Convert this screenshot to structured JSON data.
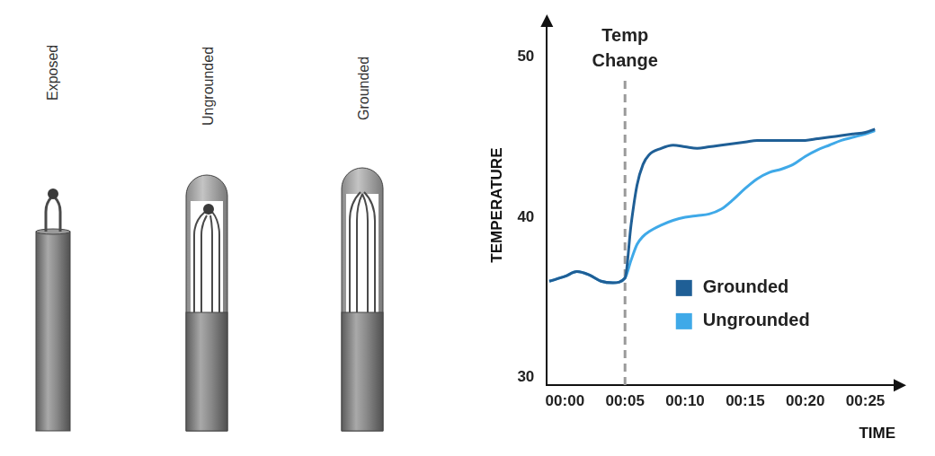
{
  "probes": {
    "labels": [
      "Exposed",
      "Ungrounded",
      "Grounded"
    ]
  },
  "chart_data": {
    "type": "line",
    "x_label": "TIME",
    "y_label": "TEMPERATURE",
    "annotations": [
      {
        "text": "Temp Change",
        "x": 5
      }
    ],
    "x": [
      -1.3,
      0,
      1,
      2,
      3,
      4,
      5,
      5.5,
      6,
      6.5,
      7,
      8,
      9,
      10,
      11,
      12,
      13,
      14,
      15,
      16,
      17,
      18,
      19,
      20,
      21,
      22,
      23,
      24,
      25,
      25.8
    ],
    "series": [
      {
        "name": "Grounded",
        "color": "#1f5f96",
        "values": [
          36.0,
          36.3,
          36.6,
          36.4,
          36.0,
          35.9,
          36.2,
          39.5,
          42.0,
          43.3,
          43.9,
          44.3,
          44.5,
          44.4,
          44.3,
          44.4,
          44.5,
          44.6,
          44.7,
          44.8,
          44.8,
          44.8,
          44.8,
          44.8,
          44.9,
          45.0,
          45.1,
          45.2,
          45.3,
          45.5
        ]
      },
      {
        "name": "Ungrounded",
        "color": "#3fa9e8",
        "values": [
          36.0,
          36.3,
          36.6,
          36.4,
          36.0,
          35.9,
          36.2,
          37.3,
          38.3,
          38.8,
          39.1,
          39.5,
          39.8,
          40.0,
          40.1,
          40.2,
          40.5,
          41.1,
          41.8,
          42.4,
          42.8,
          43.0,
          43.3,
          43.8,
          44.2,
          44.5,
          44.8,
          45.0,
          45.2,
          45.4
        ]
      }
    ],
    "xlim": [
      -1.5,
      27.5
    ],
    "ylim": [
      29.5,
      52
    ],
    "xticks": [
      {
        "value": 0,
        "label": "00:00"
      },
      {
        "value": 5,
        "label": "00:05"
      },
      {
        "value": 10,
        "label": "00:10"
      },
      {
        "value": 15,
        "label": "00:15"
      },
      {
        "value": 20,
        "label": "00:20"
      },
      {
        "value": 25,
        "label": "00:25"
      }
    ],
    "yticks": [
      30,
      40,
      50
    ],
    "grid": false,
    "legend": "lower right"
  }
}
